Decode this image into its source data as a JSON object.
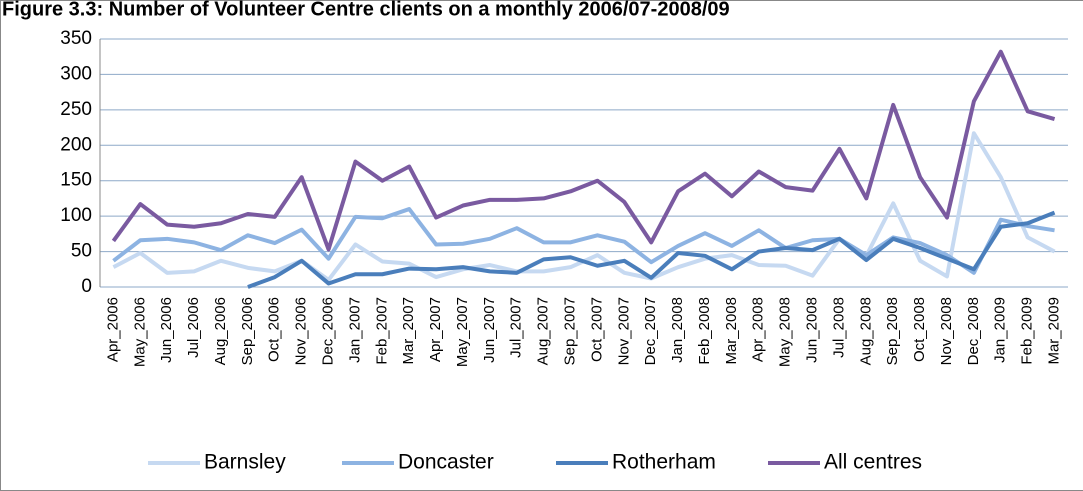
{
  "chart_data": {
    "type": "line",
    "title": "Figure 3.3: Number of Volunteer Centre clients on a monthly 2006/07-2008/09",
    "categories": [
      "Apr_2006",
      "May_2006",
      "Jun_2006",
      "Jul_2006",
      "Aug_2006",
      "Sep_2006",
      "Oct_2006",
      "Nov_2006",
      "Dec_2006",
      "Jan_2007",
      "Feb_2007",
      "Mar_2007",
      "Apr_2007",
      "May_2007",
      "Jun_2007",
      "Jul_2007",
      "Aug_2007",
      "Sep_2007",
      "Oct_2007",
      "Nov_2007",
      "Dec_2007",
      "Jan_2008",
      "Feb_2008",
      "Mar_2008",
      "Apr_2008",
      "May_2008",
      "Jun_2008",
      "Jul_2008",
      "Aug_2008",
      "Sep_2008",
      "Oct_2008",
      "Nov_2008",
      "Dec_2008",
      "Jan_2009",
      "Feb_2009",
      "Mar_2009"
    ],
    "series": [
      {
        "name": "Barnsley",
        "color": "#c6d9f1",
        "values": [
          28,
          48,
          20,
          22,
          37,
          27,
          22,
          37,
          10,
          60,
          36,
          33,
          14,
          25,
          31,
          22,
          22,
          28,
          45,
          20,
          12,
          28,
          40,
          45,
          31,
          30,
          16,
          68,
          44,
          118,
          37,
          15,
          217,
          155,
          70,
          50
        ]
      },
      {
        "name": "Doncaster",
        "color": "#8db3e2",
        "values": [
          37,
          66,
          68,
          63,
          52,
          73,
          62,
          81,
          40,
          99,
          97,
          110,
          60,
          61,
          68,
          83,
          63,
          63,
          73,
          64,
          35,
          58,
          76,
          58,
          80,
          55,
          66,
          68,
          45,
          70,
          62,
          45,
          20,
          95,
          86,
          80
        ]
      },
      {
        "name": "Rotherham",
        "color": "#4a7ebb",
        "values": [
          null,
          null,
          null,
          null,
          null,
          0,
          14,
          37,
          5,
          18,
          18,
          26,
          25,
          28,
          22,
          20,
          39,
          42,
          30,
          37,
          13,
          48,
          44,
          25,
          50,
          55,
          52,
          68,
          38,
          68,
          55,
          40,
          25,
          85,
          90,
          105
        ]
      },
      {
        "name": "All centres",
        "color": "#7a5aa0",
        "values": [
          65,
          117,
          88,
          85,
          90,
          103,
          99,
          155,
          53,
          177,
          150,
          170,
          98,
          115,
          123,
          123,
          125,
          135,
          150,
          120,
          63,
          135,
          160,
          128,
          163,
          141,
          136,
          195,
          125,
          257,
          155,
          98,
          262,
          332,
          248,
          237
        ]
      }
    ],
    "ylim": [
      0,
      350
    ],
    "yticks": [
      0,
      50,
      100,
      150,
      200,
      250,
      300,
      350
    ],
    "grid": true,
    "legend": "bottom"
  }
}
